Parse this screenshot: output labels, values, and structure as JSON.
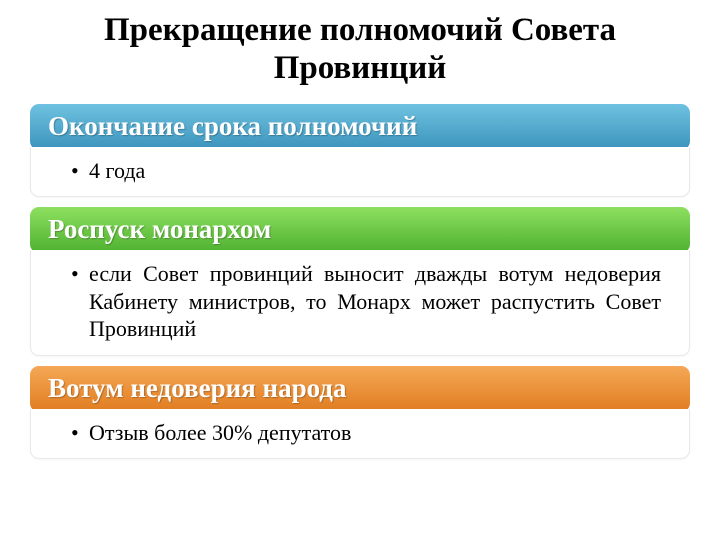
{
  "title": "Прекращение полномочий Совета Провинций",
  "sections": [
    {
      "header": "Окончание срока полномочий",
      "header_gradient_top": "#6fc2e0",
      "header_gradient_bottom": "#3b93bc",
      "bullet": "4 года",
      "justify": false
    },
    {
      "header": "Роспуск монархом",
      "header_gradient_top": "#8ee060",
      "header_gradient_bottom": "#4eb030",
      "bullet": "если Совет провинций выносит дважды вотум недоверия Кабинету министров, то Монарх может распустить Совет Провинций",
      "justify": true
    },
    {
      "header": "Вотум недоверия народа",
      "header_gradient_top": "#f5a856",
      "header_gradient_bottom": "#e07c20",
      "bullet": "Отзыв более 30% депутатов",
      "justify": false
    }
  ]
}
